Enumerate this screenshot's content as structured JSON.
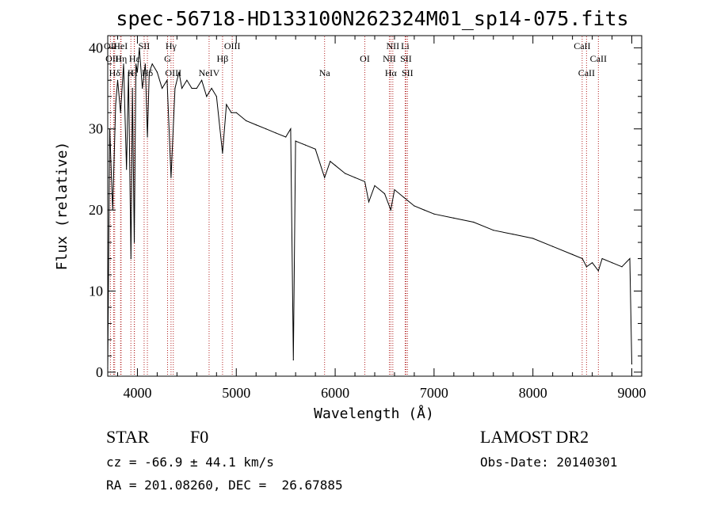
{
  "chart_data": {
    "type": "line",
    "title": "spec-56718-HD133100N262324M01_sp14-075.fits",
    "xlabel": "Wavelength (Å)",
    "ylabel": "Flux (relative)",
    "xlim": [
      3700,
      9100
    ],
    "ylim": [
      -0.5,
      41.5
    ],
    "x_ticks": [
      4000,
      5000,
      6000,
      7000,
      8000,
      9000
    ],
    "x_tick_labels": [
      "4000",
      "5000",
      "6000",
      "7000",
      "8000",
      "9000"
    ],
    "y_ticks": [
      0,
      10,
      20,
      30,
      40
    ],
    "y_tick_labels": [
      "0",
      "10",
      "20",
      "30",
      "40"
    ],
    "series": [
      {
        "name": "spectrum",
        "color": "#000000",
        "x": [
          3700,
          3720,
          3750,
          3780,
          3800,
          3830,
          3860,
          3890,
          3910,
          3935,
          3950,
          3968,
          3985,
          4000,
          4020,
          4050,
          4080,
          4101,
          4120,
          4150,
          4200,
          4250,
          4300,
          4340,
          4380,
          4420,
          4450,
          4500,
          4550,
          4600,
          4650,
          4700,
          4750,
          4800,
          4861,
          4900,
          4950,
          5000,
          5100,
          5200,
          5300,
          5400,
          5500,
          5550,
          5577,
          5600,
          5700,
          5800,
          5893,
          5950,
          6000,
          6100,
          6200,
          6300,
          6340,
          6400,
          6500,
          6563,
          6600,
          6700,
          6800,
          6900,
          7000,
          7200,
          7400,
          7600,
          7800,
          8000,
          8200,
          8400,
          8500,
          8542,
          8600,
          8662,
          8700,
          8800,
          8900,
          8980,
          9000
        ],
        "y": [
          0.5,
          30,
          20,
          33,
          36,
          32,
          38,
          25,
          37,
          14,
          35,
          16,
          38,
          37,
          40,
          35,
          38,
          29,
          37,
          38,
          37,
          35,
          36,
          24,
          35,
          37,
          35,
          36,
          35,
          35,
          36,
          34,
          35,
          34,
          27,
          33,
          32,
          32,
          31,
          30.5,
          30,
          29.5,
          29,
          30,
          1.5,
          28.5,
          28,
          27.5,
          24,
          26,
          25.5,
          24.5,
          24,
          23.5,
          21,
          23,
          22,
          20,
          22.5,
          21.5,
          20.5,
          20,
          19.5,
          19,
          18.5,
          17.5,
          17,
          16.5,
          15.5,
          14.5,
          14,
          13,
          13.5,
          12.5,
          14,
          13.5,
          13,
          14,
          1
        ]
      }
    ],
    "spectral_lines": [
      {
        "label": "OII",
        "x": 3727,
        "row": 0
      },
      {
        "label": "OIII",
        "x": 3760,
        "row": 1
      },
      {
        "label": "Hδ",
        "x": 3770,
        "row": 2
      },
      {
        "label": "HeI",
        "x": 3830,
        "row": 0
      },
      {
        "label": "Hη",
        "x": 3835,
        "row": 1
      },
      {
        "label": "K",
        "x": 3934,
        "row": 2
      },
      {
        "label": "SII",
        "x": 4068,
        "row": 0
      },
      {
        "label": "Hε",
        "x": 3970,
        "row": 1
      },
      {
        "label": "H",
        "x": 3968,
        "row": 2
      },
      {
        "label": "Hδ",
        "x": 4101,
        "row": 2
      },
      {
        "label": "Hγ",
        "x": 4340,
        "row": 0
      },
      {
        "label": "G",
        "x": 4305,
        "row": 1
      },
      {
        "label": "OIII",
        "x": 4363,
        "row": 2
      },
      {
        "label": "OIII",
        "x": 4959,
        "row": 0
      },
      {
        "label": "Hβ",
        "x": 4861,
        "row": 1
      },
      {
        "label": "NeIV",
        "x": 4725,
        "row": 2
      },
      {
        "label": "Na",
        "x": 5893,
        "row": 2
      },
      {
        "label": "OI",
        "x": 6300,
        "row": 1
      },
      {
        "label": "NII",
        "x": 6583,
        "row": 0
      },
      {
        "label": "Li",
        "x": 6708,
        "row": 0
      },
      {
        "label": "NII",
        "x": 6548,
        "row": 1
      },
      {
        "label": "SII",
        "x": 6716,
        "row": 1
      },
      {
        "label": "Hα",
        "x": 6563,
        "row": 2
      },
      {
        "label": "SII",
        "x": 6731,
        "row": 2
      },
      {
        "label": "CaII",
        "x": 8498,
        "row": 0
      },
      {
        "label": "CaII",
        "x": 8662,
        "row": 1
      },
      {
        "label": "CaII",
        "x": 8542,
        "row": 2
      }
    ]
  },
  "info": {
    "object_class": "STAR",
    "subclass": "F0",
    "survey": "LAMOST DR2",
    "redshift": "cz = -66.9 ± 44.1 km/s",
    "obs_date": "Obs-Date: 20140301",
    "coords": "RA = 201.08260, DEC =  26.67885"
  },
  "colors": {
    "line": "#000000",
    "marker_line": "#b22222",
    "background": "#ffffff"
  }
}
